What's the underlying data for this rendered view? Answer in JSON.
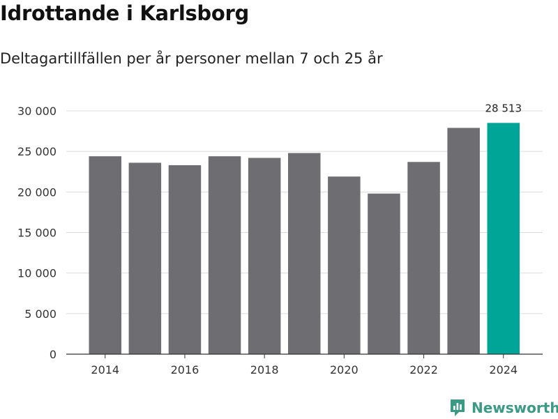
{
  "header": {
    "title": "Idrottande i Karlsborg",
    "subtitle": "Deltagartillfällen per år personer mellan 7 och 25 år"
  },
  "brand": {
    "name": "Newsworthy",
    "icon": "newsworthy-logo-icon",
    "color": "#3a9a86"
  },
  "chart_data": {
    "type": "bar",
    "categories": [
      "2014",
      "2015",
      "2016",
      "2017",
      "2018",
      "2019",
      "2020",
      "2021",
      "2022",
      "2023",
      "2024"
    ],
    "values": [
      24400,
      23600,
      23300,
      24400,
      24200,
      24800,
      21900,
      19800,
      23700,
      27900,
      28513
    ],
    "x_tick_labels": [
      "2014",
      "2016",
      "2018",
      "2020",
      "2022",
      "2024"
    ],
    "y_ticks": [
      0,
      5000,
      10000,
      15000,
      20000,
      25000,
      30000
    ],
    "y_tick_labels": [
      "0",
      "5 000",
      "10 000",
      "15 000",
      "20 000",
      "25 000",
      "30 000"
    ],
    "ylim": [
      0,
      30000
    ],
    "grid": true,
    "colors": {
      "default": "#6e6d72",
      "highlight": "#00a598"
    },
    "highlight_category": "2024",
    "annotations": [
      {
        "category": "2024",
        "label": "28 513"
      }
    ]
  }
}
